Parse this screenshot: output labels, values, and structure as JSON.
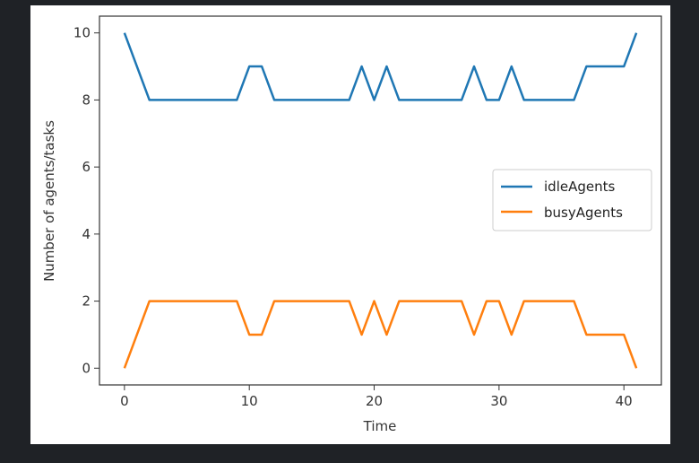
{
  "chart_data": {
    "type": "line",
    "title": "",
    "xlabel": "Time",
    "ylabel": "Number of agents/tasks",
    "xlim": [
      -2,
      43
    ],
    "ylim": [
      -0.5,
      10.5
    ],
    "xticks": [
      0,
      10,
      20,
      30,
      40
    ],
    "yticks": [
      0,
      2,
      4,
      6,
      8,
      10
    ],
    "grid": false,
    "legend_position": "center-right",
    "x": [
      0,
      1,
      2,
      3,
      4,
      5,
      6,
      7,
      8,
      9,
      10,
      11,
      12,
      13,
      14,
      15,
      16,
      17,
      18,
      19,
      20,
      21,
      22,
      23,
      24,
      25,
      26,
      27,
      28,
      29,
      30,
      31,
      32,
      33,
      34,
      35,
      36,
      37,
      38,
      39,
      40,
      41
    ],
    "series": [
      {
        "name": "idleAgents",
        "color": "#1f77b4",
        "values": [
          10,
          9,
          8,
          8,
          8,
          8,
          8,
          8,
          8,
          8,
          9,
          9,
          8,
          8,
          8,
          8,
          8,
          8,
          8,
          9,
          8,
          9,
          8,
          8,
          8,
          8,
          8,
          8,
          9,
          8,
          8,
          9,
          8,
          8,
          8,
          8,
          8,
          9,
          9,
          9,
          9,
          10
        ]
      },
      {
        "name": "busyAgents",
        "color": "#ff7f0e",
        "values": [
          0,
          1,
          2,
          2,
          2,
          2,
          2,
          2,
          2,
          2,
          1,
          1,
          2,
          2,
          2,
          2,
          2,
          2,
          2,
          1,
          2,
          1,
          2,
          2,
          2,
          2,
          2,
          2,
          1,
          2,
          2,
          1,
          2,
          2,
          2,
          2,
          2,
          1,
          1,
          1,
          1,
          0
        ]
      }
    ]
  }
}
